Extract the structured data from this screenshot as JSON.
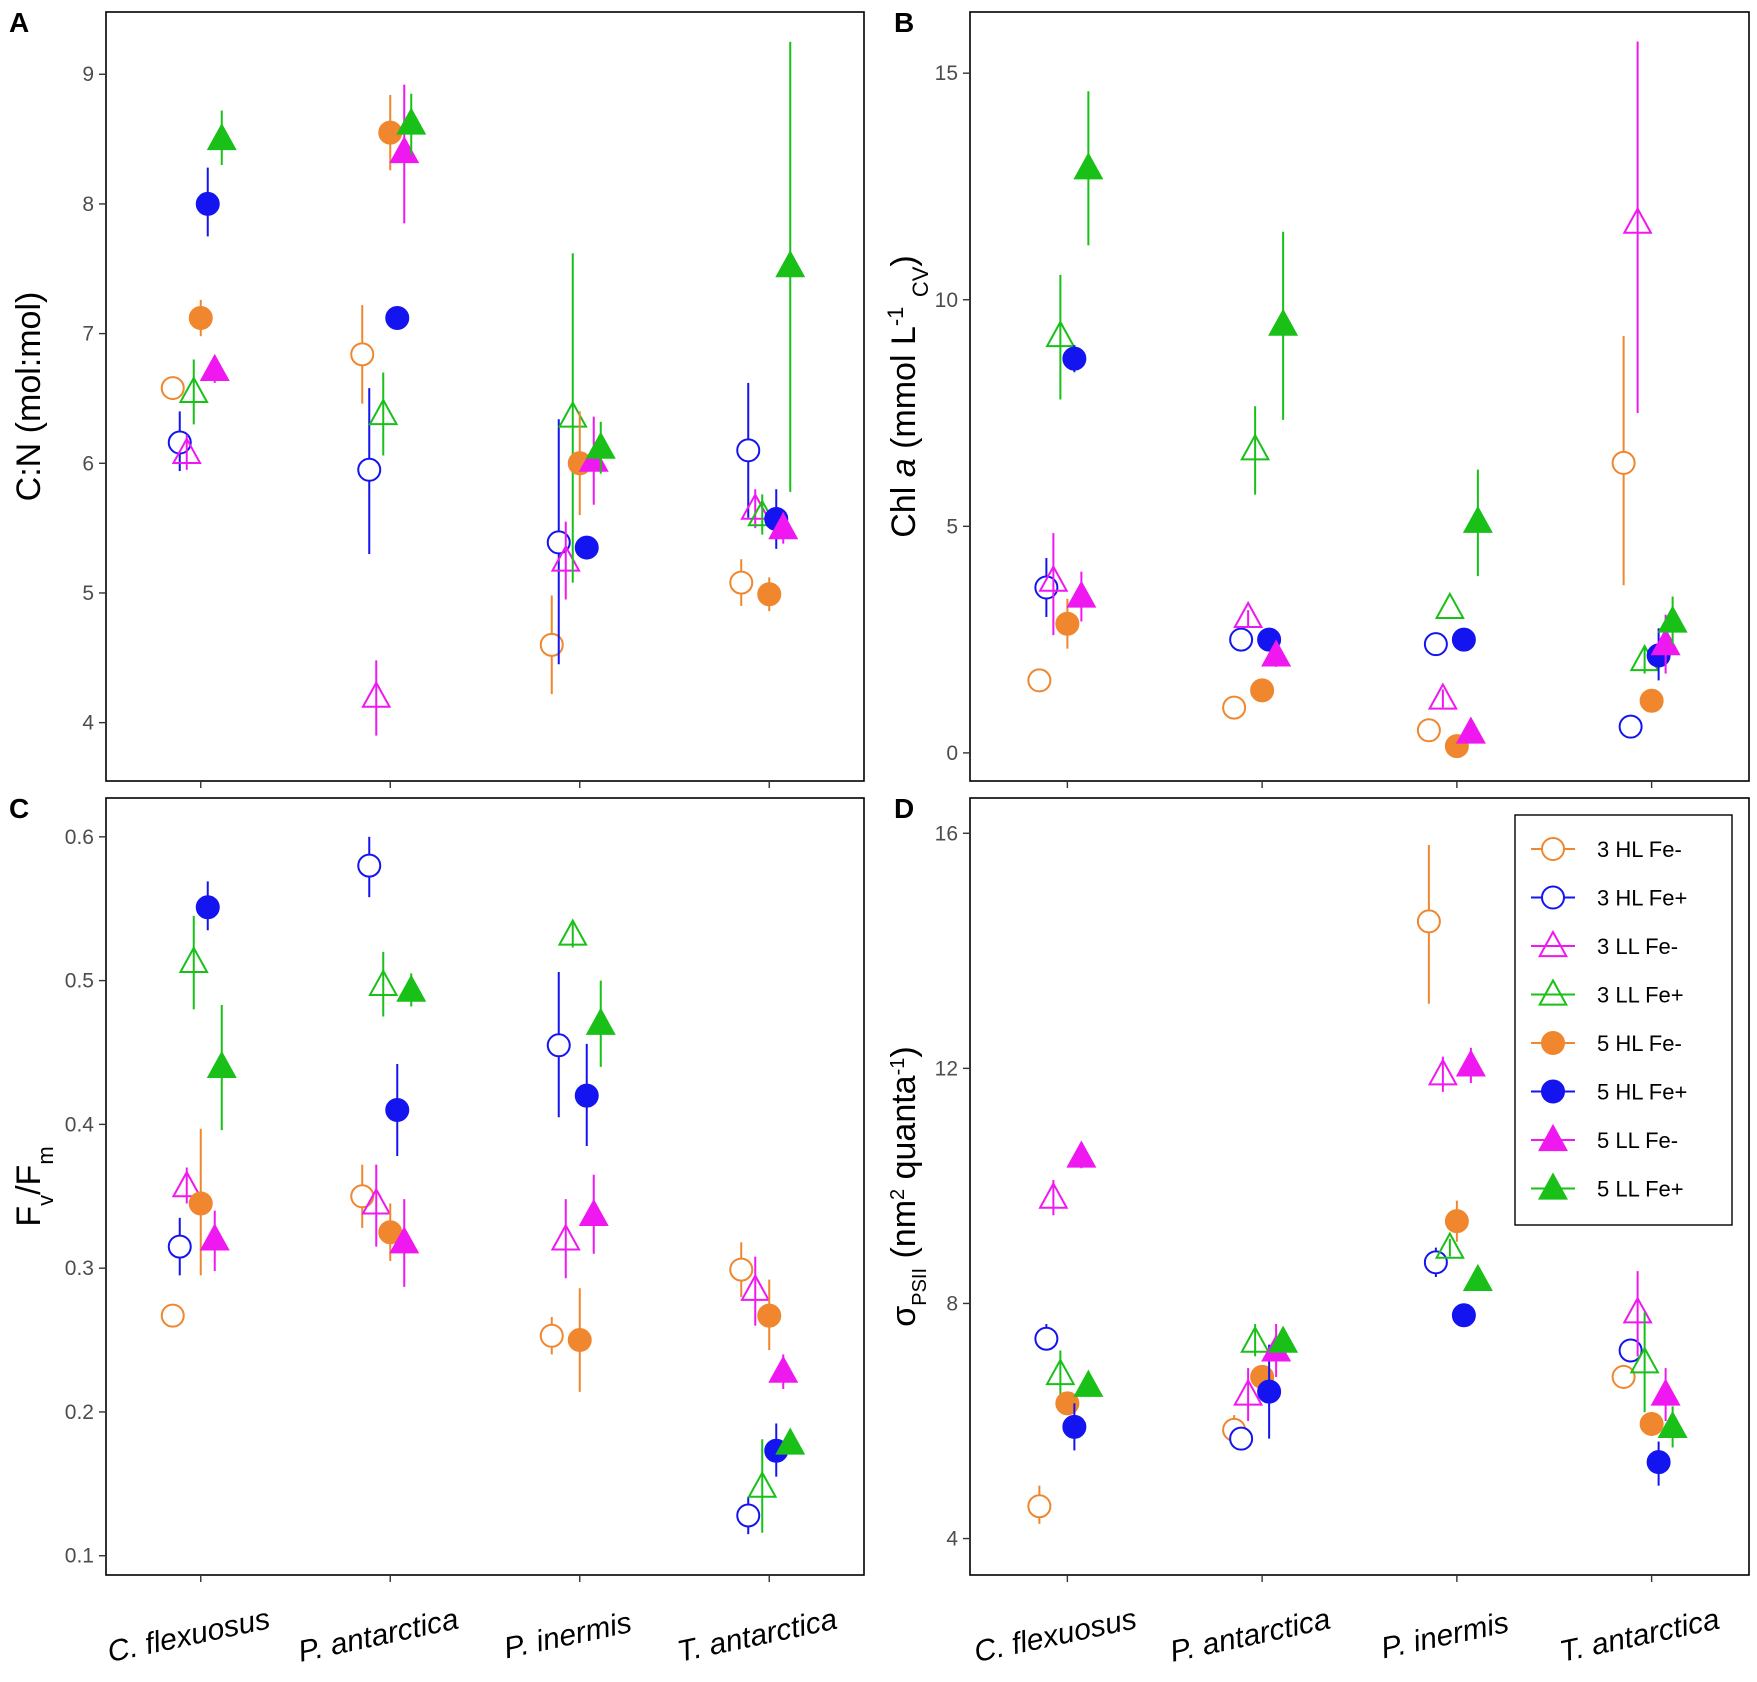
{
  "figure": {
    "categories": [
      "C. flexuosus",
      "P. antarctica",
      "P. inermis",
      "T. antarctica"
    ],
    "colors": {
      "orange": "#f0862e",
      "blue": "#1414f0",
      "magenta": "#f018f0",
      "green": "#18c018"
    }
  },
  "legend": [
    {
      "label": "3 HL Fe-",
      "color": "#f0862e",
      "shape": "circle",
      "filled": false
    },
    {
      "label": "3 HL Fe+",
      "color": "#1414f0",
      "shape": "circle",
      "filled": false
    },
    {
      "label": "3 LL Fe-",
      "color": "#f018f0",
      "shape": "triangle",
      "filled": false
    },
    {
      "label": "3 LL Fe+",
      "color": "#18c018",
      "shape": "triangle",
      "filled": false
    },
    {
      "label": "5 HL Fe-",
      "color": "#f0862e",
      "shape": "circle",
      "filled": true
    },
    {
      "label": "5 HL Fe+",
      "color": "#1414f0",
      "shape": "circle",
      "filled": true
    },
    {
      "label": "5 LL Fe-",
      "color": "#f018f0",
      "shape": "triangle",
      "filled": true
    },
    {
      "label": "5 LL Fe+",
      "color": "#18c018",
      "shape": "triangle",
      "filled": true
    }
  ],
  "chart_data": [
    {
      "panel": "A",
      "type": "scatter",
      "ylabel": "C:N (mol:mol)",
      "ylim": [
        3.55,
        9.48
      ],
      "yticks": [
        4,
        5,
        6,
        7,
        8,
        9
      ],
      "series": [
        {
          "name": "3 HL Fe-",
          "points": [
            {
              "y": 6.58,
              "lo": 6.58,
              "hi": 6.58
            },
            {
              "y": 6.84,
              "lo": 6.46,
              "hi": 7.22
            },
            {
              "y": 4.6,
              "lo": 4.22,
              "hi": 4.98
            },
            {
              "y": 5.08,
              "lo": 4.9,
              "hi": 5.26
            }
          ]
        },
        {
          "name": "3 HL Fe+",
          "points": [
            {
              "y": 6.16,
              "lo": 5.94,
              "hi": 6.4
            },
            {
              "y": 5.95,
              "lo": 5.3,
              "hi": 6.58
            },
            {
              "y": 5.39,
              "lo": 4.45,
              "hi": 6.34
            },
            {
              "y": 6.1,
              "lo": 5.58,
              "hi": 6.62
            }
          ]
        },
        {
          "name": "3 LL Fe-",
          "points": [
            {
              "y": 6.08,
              "lo": 5.95,
              "hi": 6.22
            },
            {
              "y": 4.2,
              "lo": 3.9,
              "hi": 4.48
            },
            {
              "y": 5.25,
              "lo": 4.95,
              "hi": 5.55
            },
            {
              "y": 5.65,
              "lo": 5.5,
              "hi": 5.8
            }
          ]
        },
        {
          "name": "3 LL Fe+",
          "points": [
            {
              "y": 6.55,
              "lo": 6.3,
              "hi": 6.8
            },
            {
              "y": 6.38,
              "lo": 6.06,
              "hi": 6.7
            },
            {
              "y": 6.36,
              "lo": 5.08,
              "hi": 7.62
            },
            {
              "y": 5.6,
              "lo": 5.45,
              "hi": 5.76
            }
          ]
        },
        {
          "name": "5 HL Fe-",
          "points": [
            {
              "y": 7.12,
              "lo": 6.98,
              "hi": 7.26
            },
            {
              "y": 8.55,
              "lo": 8.26,
              "hi": 8.84
            },
            {
              "y": 6.0,
              "lo": 5.6,
              "hi": 6.4
            },
            {
              "y": 4.99,
              "lo": 4.86,
              "hi": 5.12
            }
          ]
        },
        {
          "name": "5 HL Fe+",
          "points": [
            {
              "y": 8.0,
              "lo": 7.75,
              "hi": 8.28
            },
            {
              "y": 7.12,
              "lo": 7.12,
              "hi": 7.12
            },
            {
              "y": 5.35,
              "lo": 5.35,
              "hi": 5.35
            },
            {
              "y": 5.57,
              "lo": 5.34,
              "hi": 5.8
            }
          ]
        },
        {
          "name": "5 LL Fe-",
          "points": [
            {
              "y": 6.72,
              "lo": 6.62,
              "hi": 6.82
            },
            {
              "y": 8.4,
              "lo": 7.85,
              "hi": 8.92
            },
            {
              "y": 6.02,
              "lo": 5.68,
              "hi": 6.36
            },
            {
              "y": 5.5,
              "lo": 5.38,
              "hi": 5.62
            }
          ]
        },
        {
          "name": "5 LL Fe+",
          "points": [
            {
              "y": 8.5,
              "lo": 8.3,
              "hi": 8.72
            },
            {
              "y": 8.62,
              "lo": 8.38,
              "hi": 8.85
            },
            {
              "y": 6.12,
              "lo": 5.92,
              "hi": 6.32
            },
            {
              "y": 7.52,
              "lo": 5.78,
              "hi": 9.25
            }
          ]
        }
      ]
    },
    {
      "panel": "B",
      "type": "scatter",
      "ylabel": "Chl a (mmol L-1 CV)",
      "ylim": [
        -0.62,
        16.35
      ],
      "yticks": [
        0,
        5,
        10,
        15
      ],
      "series": [
        {
          "name": "3 HL Fe-",
          "points": [
            {
              "y": 1.6,
              "lo": 1.6,
              "hi": 1.6
            },
            {
              "y": 1.0,
              "lo": 1.0,
              "hi": 1.0
            },
            {
              "y": 0.5,
              "lo": 0.5,
              "hi": 0.5
            },
            {
              "y": 6.4,
              "lo": 3.7,
              "hi": 9.2
            }
          ]
        },
        {
          "name": "3 HL Fe+",
          "points": [
            {
              "y": 3.65,
              "lo": 3.0,
              "hi": 4.3
            },
            {
              "y": 2.5,
              "lo": 2.5,
              "hi": 2.5
            },
            {
              "y": 2.4,
              "lo": 2.15,
              "hi": 2.65
            },
            {
              "y": 0.58,
              "lo": 0.58,
              "hi": 0.58
            }
          ]
        },
        {
          "name": "3 LL Fe-",
          "points": [
            {
              "y": 3.8,
              "lo": 2.6,
              "hi": 4.85
            },
            {
              "y": 3.0,
              "lo": 2.8,
              "hi": 3.15
            },
            {
              "y": 1.2,
              "lo": 1.0,
              "hi": 1.4
            },
            {
              "y": 11.7,
              "lo": 7.5,
              "hi": 15.7
            }
          ]
        },
        {
          "name": "3 LL Fe+",
          "points": [
            {
              "y": 9.2,
              "lo": 7.8,
              "hi": 10.55
            },
            {
              "y": 6.7,
              "lo": 5.7,
              "hi": 7.65
            },
            {
              "y": 3.2,
              "lo": 3.2,
              "hi": 3.2
            },
            {
              "y": 2.05,
              "lo": 1.75,
              "hi": 2.35
            }
          ]
        },
        {
          "name": "5 HL Fe-",
          "points": [
            {
              "y": 2.85,
              "lo": 2.3,
              "hi": 3.4
            },
            {
              "y": 1.38,
              "lo": 1.38,
              "hi": 1.38
            },
            {
              "y": 0.15,
              "lo": 0.15,
              "hi": 0.15
            },
            {
              "y": 1.15,
              "lo": 1.15,
              "hi": 1.15
            }
          ]
        },
        {
          "name": "5 HL Fe+",
          "points": [
            {
              "y": 8.7,
              "lo": 8.4,
              "hi": 9.0
            },
            {
              "y": 2.5,
              "lo": 2.5,
              "hi": 2.5
            },
            {
              "y": 2.5,
              "lo": 2.5,
              "hi": 2.5
            },
            {
              "y": 2.15,
              "lo": 1.6,
              "hi": 2.75
            }
          ]
        },
        {
          "name": "5 LL Fe-",
          "points": [
            {
              "y": 3.45,
              "lo": 2.9,
              "hi": 4.0
            },
            {
              "y": 2.15,
              "lo": 1.9,
              "hi": 2.4
            },
            {
              "y": 0.45,
              "lo": 0.3,
              "hi": 0.6
            },
            {
              "y": 2.4,
              "lo": 1.75,
              "hi": 3.05
            }
          ]
        },
        {
          "name": "5 LL Fe+",
          "points": [
            {
              "y": 12.9,
              "lo": 11.2,
              "hi": 14.6
            },
            {
              "y": 9.45,
              "lo": 7.35,
              "hi": 11.5
            },
            {
              "y": 5.1,
              "lo": 3.9,
              "hi": 6.25
            },
            {
              "y": 2.9,
              "lo": 2.4,
              "hi": 3.45
            }
          ]
        }
      ]
    },
    {
      "panel": "C",
      "type": "scatter",
      "ylabel": "Fv/Fm",
      "ylim": [
        0.0866,
        0.627
      ],
      "yticks": [
        0.1,
        0.2,
        0.3,
        0.4,
        0.5,
        0.6
      ],
      "series": [
        {
          "name": "3 HL Fe-",
          "points": [
            {
              "y": 0.267,
              "lo": 0.26,
              "hi": 0.275
            },
            {
              "y": 0.35,
              "lo": 0.328,
              "hi": 0.372
            },
            {
              "y": 0.253,
              "lo": 0.24,
              "hi": 0.266
            },
            {
              "y": 0.299,
              "lo": 0.28,
              "hi": 0.318
            }
          ]
        },
        {
          "name": "3 HL Fe+",
          "points": [
            {
              "y": 0.315,
              "lo": 0.295,
              "hi": 0.335
            },
            {
              "y": 0.58,
              "lo": 0.558,
              "hi": 0.6
            },
            {
              "y": 0.455,
              "lo": 0.405,
              "hi": 0.506
            },
            {
              "y": 0.128,
              "lo": 0.115,
              "hi": 0.141
            }
          ]
        },
        {
          "name": "3 LL Fe-",
          "points": [
            {
              "y": 0.357,
              "lo": 0.345,
              "hi": 0.37
            },
            {
              "y": 0.345,
              "lo": 0.315,
              "hi": 0.372
            },
            {
              "y": 0.32,
              "lo": 0.293,
              "hi": 0.348
            },
            {
              "y": 0.285,
              "lo": 0.26,
              "hi": 0.308
            }
          ]
        },
        {
          "name": "3 LL Fe+",
          "points": [
            {
              "y": 0.513,
              "lo": 0.48,
              "hi": 0.545
            },
            {
              "y": 0.497,
              "lo": 0.475,
              "hi": 0.52
            },
            {
              "y": 0.532,
              "lo": 0.523,
              "hi": 0.54
            },
            {
              "y": 0.148,
              "lo": 0.116,
              "hi": 0.181
            }
          ]
        },
        {
          "name": "5 HL Fe-",
          "points": [
            {
              "y": 0.345,
              "lo": 0.295,
              "hi": 0.397
            },
            {
              "y": 0.325,
              "lo": 0.305,
              "hi": 0.345
            },
            {
              "y": 0.25,
              "lo": 0.214,
              "hi": 0.286
            },
            {
              "y": 0.267,
              "lo": 0.243,
              "hi": 0.292
            }
          ]
        },
        {
          "name": "5 HL Fe+",
          "points": [
            {
              "y": 0.551,
              "lo": 0.535,
              "hi": 0.569
            },
            {
              "y": 0.41,
              "lo": 0.378,
              "hi": 0.442
            },
            {
              "y": 0.42,
              "lo": 0.385,
              "hi": 0.456
            },
            {
              "y": 0.173,
              "lo": 0.155,
              "hi": 0.192
            }
          ]
        },
        {
          "name": "5 LL Fe-",
          "points": [
            {
              "y": 0.32,
              "lo": 0.298,
              "hi": 0.34
            },
            {
              "y": 0.318,
              "lo": 0.287,
              "hi": 0.348
            },
            {
              "y": 0.337,
              "lo": 0.31,
              "hi": 0.365
            },
            {
              "y": 0.228,
              "lo": 0.216,
              "hi": 0.24
            }
          ]
        },
        {
          "name": "5 LL Fe+",
          "points": [
            {
              "y": 0.44,
              "lo": 0.396,
              "hi": 0.483
            },
            {
              "y": 0.493,
              "lo": 0.482,
              "hi": 0.505
            },
            {
              "y": 0.47,
              "lo": 0.44,
              "hi": 0.5
            },
            {
              "y": 0.178,
              "lo": 0.172,
              "hi": 0.184
            }
          ]
        }
      ]
    },
    {
      "panel": "D",
      "type": "scatter",
      "ylabel": "σPSII (nm2 quanta-1)",
      "ylim": [
        3.38,
        16.6
      ],
      "yticks": [
        4,
        8,
        12,
        16
      ],
      "series": [
        {
          "name": "3 HL Fe-",
          "points": [
            {
              "y": 4.55,
              "lo": 4.25,
              "hi": 4.9
            },
            {
              "y": 5.85,
              "lo": 5.6,
              "hi": 6.1
            },
            {
              "y": 14.5,
              "lo": 13.1,
              "hi": 15.8
            },
            {
              "y": 6.75,
              "lo": 6.55,
              "hi": 6.95
            }
          ]
        },
        {
          "name": "3 HL Fe+",
          "points": [
            {
              "y": 7.4,
              "lo": 7.2,
              "hi": 7.65
            },
            {
              "y": 5.7,
              "lo": 5.7,
              "hi": 5.7
            },
            {
              "y": 8.7,
              "lo": 8.45,
              "hi": 8.95
            },
            {
              "y": 7.2,
              "lo": 7.0,
              "hi": 7.4
            }
          ]
        },
        {
          "name": "3 LL Fe-",
          "points": [
            {
              "y": 9.8,
              "lo": 9.5,
              "hi": 10.1
            },
            {
              "y": 6.45,
              "lo": 6.0,
              "hi": 6.9
            },
            {
              "y": 11.9,
              "lo": 11.6,
              "hi": 12.2
            },
            {
              "y": 7.85,
              "lo": 7.1,
              "hi": 8.55
            }
          ]
        },
        {
          "name": "3 LL Fe+",
          "points": [
            {
              "y": 6.8,
              "lo": 6.4,
              "hi": 7.2
            },
            {
              "y": 7.35,
              "lo": 7.1,
              "hi": 7.65
            },
            {
              "y": 8.95,
              "lo": 8.8,
              "hi": 9.1
            },
            {
              "y": 7.0,
              "lo": 6.15,
              "hi": 7.85
            }
          ]
        },
        {
          "name": "5 HL Fe-",
          "points": [
            {
              "y": 6.3,
              "lo": 6.3,
              "hi": 6.3
            },
            {
              "y": 6.75,
              "lo": 6.75,
              "hi": 6.75
            },
            {
              "y": 9.4,
              "lo": 9.05,
              "hi": 9.75
            },
            {
              "y": 5.95,
              "lo": 5.75,
              "hi": 6.15
            }
          ]
        },
        {
          "name": "5 HL Fe+",
          "points": [
            {
              "y": 5.9,
              "lo": 5.5,
              "hi": 6.3
            },
            {
              "y": 6.5,
              "lo": 5.7,
              "hi": 7.3
            },
            {
              "y": 7.8,
              "lo": 7.8,
              "hi": 7.8
            },
            {
              "y": 5.3,
              "lo": 4.9,
              "hi": 5.65
            }
          ]
        },
        {
          "name": "5 LL Fe-",
          "points": [
            {
              "y": 10.5,
              "lo": 10.3,
              "hi": 10.7
            },
            {
              "y": 7.2,
              "lo": 6.75,
              "hi": 7.65
            },
            {
              "y": 12.05,
              "lo": 11.75,
              "hi": 12.35
            },
            {
              "y": 6.45,
              "lo": 6.0,
              "hi": 6.9
            }
          ]
        },
        {
          "name": "5 LL Fe+",
          "points": [
            {
              "y": 6.6,
              "lo": 6.6,
              "hi": 6.6
            },
            {
              "y": 7.35,
              "lo": 7.35,
              "hi": 7.35
            },
            {
              "y": 8.4,
              "lo": 8.4,
              "hi": 8.4
            },
            {
              "y": 5.9,
              "lo": 5.55,
              "hi": 6.25
            }
          ]
        }
      ]
    }
  ]
}
